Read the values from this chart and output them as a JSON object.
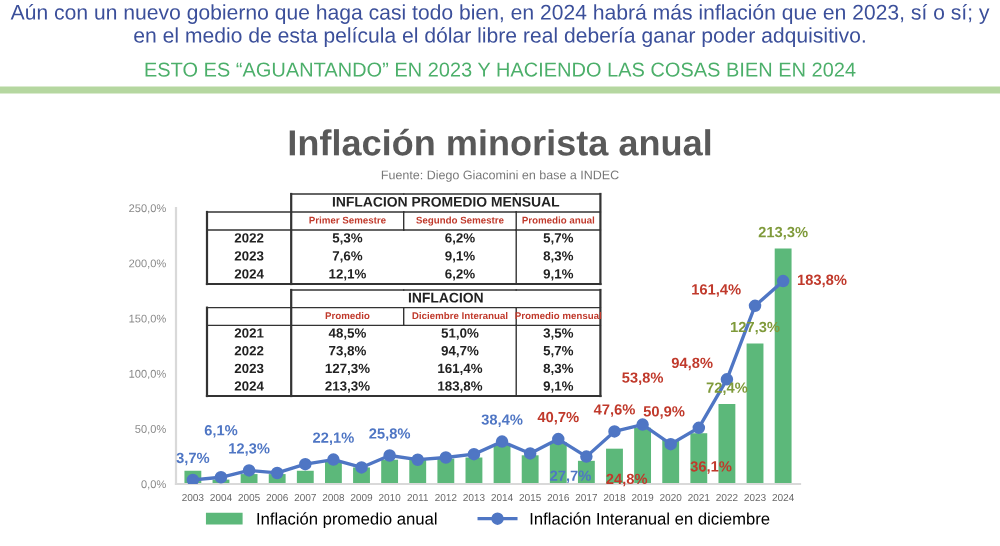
{
  "chart_data": {
    "type": "bar",
    "title": "Inflación minorista anual",
    "subtitle": "Fuente: Diego Giacomini en base a INDEC",
    "annotations": [
      "Aún con un nuevo gobierno que haga casi todo bien, en 2024 habrá más inflación que en 2023, sí o sí; y en el medio de esta película el dólar libre real debería ganar poder adquisitivo.",
      "ESTO ES “AGUANTANDO” EN 2023 Y HACIENDO LAS COSAS BIEN EN 2024",
      "INFLACION PROMEDIO MENSUAL",
      "Primer Semestre",
      "Segundo Semestre",
      "Promedio anual",
      "2022",
      "5,3%",
      "6,2%",
      "5,7%",
      "2023",
      "7,6%",
      "9,1%",
      "8,3%",
      "2024",
      "12,1%",
      "6,2%",
      "9,1%",
      "INFLACION",
      "Promedio",
      "Diciembre Interanual",
      "Promedio mensual",
      "2021",
      "48,5%",
      "51,0%",
      "3,5%",
      "2022",
      "73,8%",
      "94,7%",
      "5,7%",
      "2023",
      "127,3%",
      "161,4%",
      "8,3%",
      "2024",
      "213,3%",
      "183,8%",
      "9,1%"
    ],
    "categories": [
      "2003",
      "2004",
      "2005",
      "2006",
      "2007",
      "2008",
      "2009",
      "2010",
      "2011",
      "2012",
      "2013",
      "2014",
      "2015",
      "2016",
      "2017",
      "2018",
      "2019",
      "2020",
      "2021",
      "2022",
      "2023",
      "2024"
    ],
    "series": [
      {
        "name": "Inflación promedio anual",
        "color": "#5cb87a",
        "values": [
          12,
          4,
          9,
          9,
          12,
          20,
          15,
          22,
          22,
          23,
          24,
          36,
          26,
          38,
          21,
          32,
          51,
          40,
          46,
          72.4,
          127.3,
          213.3
        ],
        "value_labels": [
          null,
          null,
          null,
          null,
          null,
          null,
          null,
          null,
          null,
          null,
          null,
          null,
          null,
          null,
          null,
          null,
          null,
          null,
          null,
          "72,4%",
          "127,3%",
          "213,3%"
        ]
      },
      {
        "name": "Inflación Interanual en diciembre",
        "type": "line",
        "color": "#4f76c4",
        "marker": "circle",
        "values": [
          3.7,
          6.1,
          12.3,
          10,
          18,
          22.1,
          15,
          25.8,
          22,
          24,
          27,
          38.4,
          27.7,
          40.7,
          24.8,
          47.6,
          53.8,
          36.1,
          50.9,
          94.8,
          161.4,
          183.8
        ],
        "value_labels": [
          "3,7%",
          "6,1%",
          "12,3%",
          null,
          null,
          "22,1%",
          null,
          "25,8%",
          null,
          null,
          null,
          "38,4%",
          "27,7%",
          "40,7%",
          "24,8%",
          "47,6%",
          "53,8%",
          "36,1%",
          "50,9%",
          "94,8%",
          "161,4%",
          "183,8%"
        ]
      }
    ],
    "ylim": [
      0,
      250
    ],
    "yticks": [
      {
        "value": 0,
        "label": "0,0%"
      },
      {
        "value": 50,
        "label": "50,0%"
      },
      {
        "value": 100,
        "label": "100,0%"
      },
      {
        "value": 150,
        "label": "150,0%"
      },
      {
        "value": 200,
        "label": "200,0%"
      },
      {
        "value": 250,
        "label": "250,0%"
      }
    ],
    "grid": false,
    "legend": "bottom"
  }
}
